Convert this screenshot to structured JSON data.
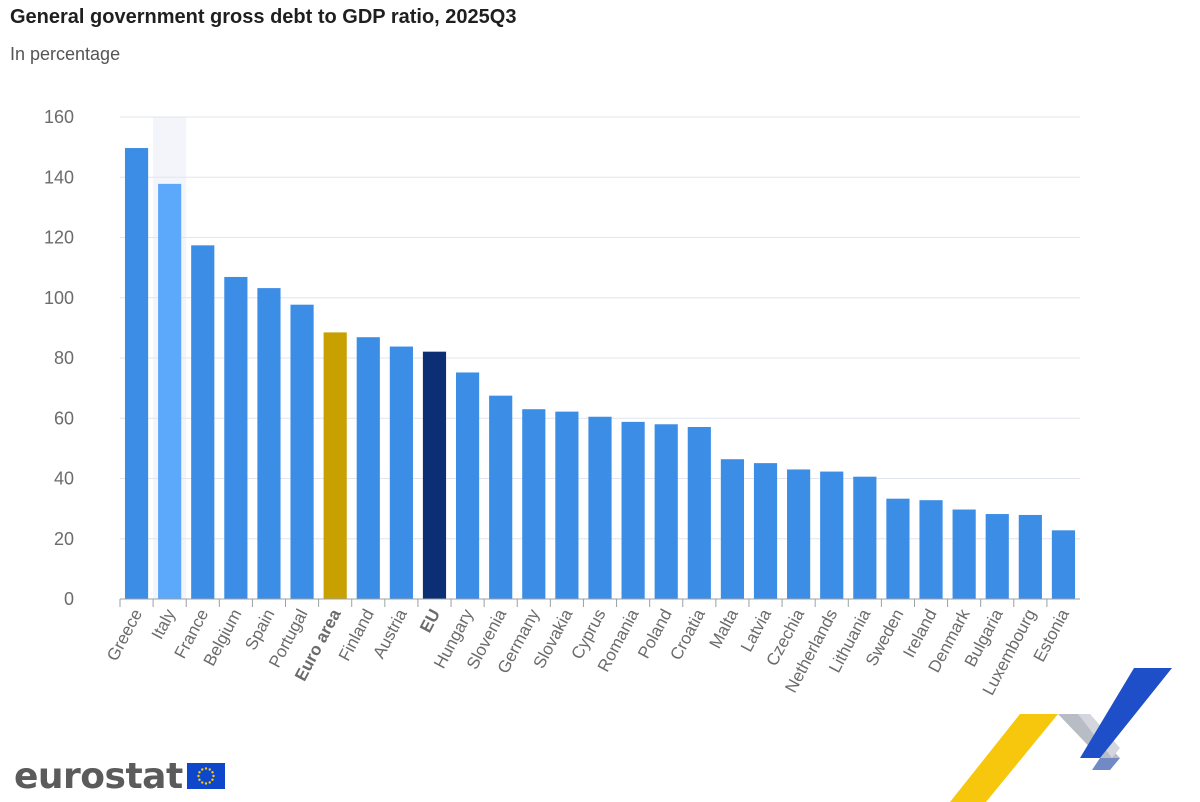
{
  "chart_data": {
    "type": "bar",
    "title": "General government gross debt to GDP ratio, 2025Q3",
    "subtitle": "In percentage",
    "xlabel": "",
    "ylabel": "",
    "ylim": [
      0,
      160
    ],
    "yticks": [
      0,
      20,
      40,
      60,
      80,
      100,
      120,
      140,
      160
    ],
    "grid": true,
    "categories": [
      "Greece",
      "Italy",
      "France",
      "Belgium",
      "Spain",
      "Portugal",
      "Euro area",
      "Finland",
      "Austria",
      "EU",
      "Hungary",
      "Slovenia",
      "Germany",
      "Slovakia",
      "Cyprus",
      "Romania",
      "Poland",
      "Croatia",
      "Malta",
      "Latvia",
      "Czechia",
      "Netherlands",
      "Lithuania",
      "Sweden",
      "Ireland",
      "Denmark",
      "Bulgaria",
      "Luxembourg",
      "Estonia"
    ],
    "values": [
      149.7,
      137.8,
      117.4,
      106.9,
      103.2,
      97.7,
      88.5,
      86.9,
      83.8,
      82.1,
      75.2,
      67.5,
      63.0,
      62.2,
      60.5,
      58.8,
      58.0,
      57.1,
      46.4,
      45.1,
      43.0,
      42.3,
      40.6,
      33.3,
      32.8,
      29.7,
      28.2,
      27.9,
      22.8
    ],
    "highlighted": [
      "Euro area",
      "EU"
    ],
    "hovered": "Italy",
    "colors": {
      "default": "#3c8de6",
      "hovered": "#5ca9fb",
      "euro_area": "#c8a000",
      "eu": "#0b2e74",
      "grid": "#e1e5ee",
      "axis": "#9aa0a6",
      "tick_label": "#6b6b6b"
    }
  },
  "footer": {
    "logo_text": "eurostat",
    "logo_flag_color": "#0e47cb",
    "logo_star_color": "#ffcc00"
  }
}
